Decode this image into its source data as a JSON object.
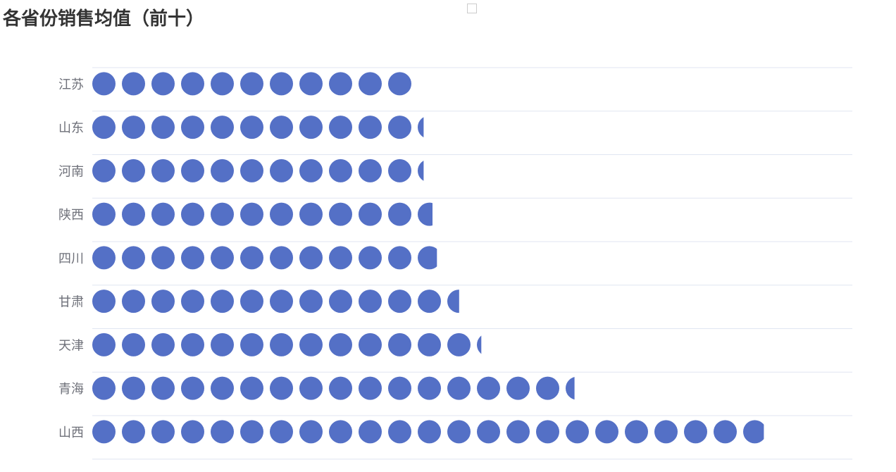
{
  "page": {
    "title": "各省份销售均值（前十）"
  },
  "colors": {
    "symbol": "#5470c6",
    "grid_line": "#e0e6f1",
    "axis_label": "#6e7079",
    "title": "#333333"
  },
  "chart_data": {
    "type": "bar",
    "subtype": "pictorial-bar-circles",
    "orientation": "horizontal",
    "title": "各省份销售均值（前十）",
    "categories": [
      "江苏",
      "山东",
      "河南",
      "陕西",
      "四川",
      "甘肃",
      "天津",
      "青海",
      "山西"
    ],
    "values": [
      11.0,
      11.2,
      11.2,
      11.5,
      11.65,
      12.4,
      13.15,
      16.3,
      22.7
    ],
    "symbol": "circle",
    "legend": "top-center",
    "grid": true
  }
}
